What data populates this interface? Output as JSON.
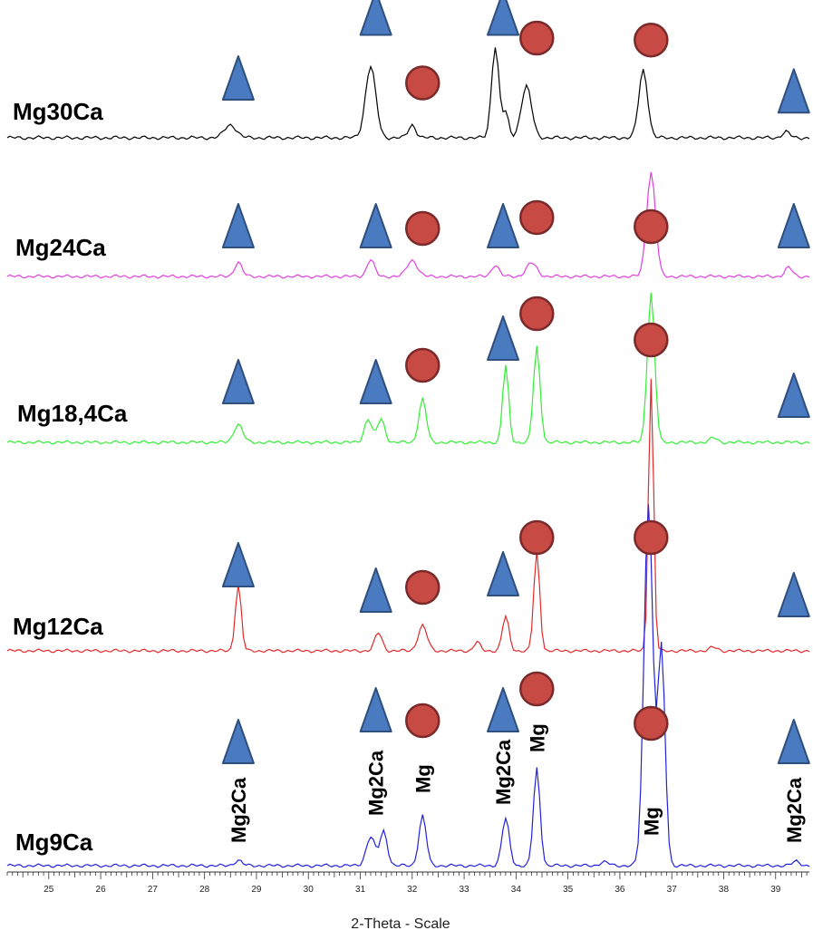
{
  "chart_data": {
    "type": "line",
    "xlabel": "2-Theta - Scale",
    "xlim": [
      24.2,
      39.65
    ],
    "x_ticks": [
      25,
      26,
      27,
      28,
      29,
      30,
      31,
      32,
      33,
      34,
      35,
      36,
      37,
      38,
      39
    ],
    "tick_labels": [
      "25",
      "26",
      "27",
      "28",
      "29",
      "30",
      "31",
      "32",
      "33",
      "34",
      "35",
      "36",
      "37",
      "38",
      "39"
    ],
    "legend": {
      "triangle": "Mg2Ca",
      "circle": "Mg"
    },
    "marker_colors": {
      "triangle": "#4a7abf",
      "circle": "#c84a44"
    },
    "phase_labels": [
      {
        "text": "Mg2Ca",
        "x": 28.65
      },
      {
        "text": "Mg2Ca",
        "x": 31.3
      },
      {
        "text": "Mg",
        "x": 32.2
      },
      {
        "text": "Mg2Ca",
        "x": 33.75
      },
      {
        "text": "Mg",
        "x": 34.4
      },
      {
        "text": "Mg",
        "x": 36.6
      },
      {
        "text": "Mg2Ca",
        "x": 39.35
      }
    ],
    "series": [
      {
        "name": "Mg30Ca",
        "color": "#000000",
        "baseline": 0,
        "peaks": [
          {
            "x": 28.5,
            "h": 0.13,
            "w": 0.16
          },
          {
            "x": 31.2,
            "h": 0.72,
            "w": 0.14
          },
          {
            "x": 32.0,
            "h": 0.13,
            "w": 0.1
          },
          {
            "x": 33.6,
            "h": 0.92,
            "w": 0.1
          },
          {
            "x": 33.8,
            "h": 0.25,
            "w": 0.08
          },
          {
            "x": 34.2,
            "h": 0.52,
            "w": 0.14
          },
          {
            "x": 36.45,
            "h": 0.68,
            "w": 0.12
          },
          {
            "x": 39.2,
            "h": 0.06,
            "w": 0.1
          }
        ],
        "markers": [
          {
            "shape": "triangle",
            "x": 28.65,
            "y": 0.6
          },
          {
            "shape": "triangle",
            "x": 31.3,
            "y": 1.25
          },
          {
            "shape": "circle",
            "x": 32.2,
            "y": 0.55
          },
          {
            "shape": "triangle",
            "x": 33.75,
            "y": 1.25
          },
          {
            "shape": "circle",
            "x": 34.4,
            "y": 1.0
          },
          {
            "shape": "circle",
            "x": 36.6,
            "y": 0.98
          },
          {
            "shape": "triangle",
            "x": 39.35,
            "y": 0.47
          }
        ]
      },
      {
        "name": "Mg24Ca",
        "color": "#e040e0",
        "baseline": 0,
        "peaks": [
          {
            "x": 28.65,
            "h": 0.16,
            "w": 0.1
          },
          {
            "x": 31.2,
            "h": 0.19,
            "w": 0.1
          },
          {
            "x": 32.0,
            "h": 0.18,
            "w": 0.14
          },
          {
            "x": 33.6,
            "h": 0.13,
            "w": 0.1
          },
          {
            "x": 34.3,
            "h": 0.15,
            "w": 0.14
          },
          {
            "x": 36.6,
            "h": 1.15,
            "w": 0.12
          },
          {
            "x": 39.25,
            "h": 0.1,
            "w": 0.1
          }
        ],
        "markers": [
          {
            "shape": "triangle",
            "x": 28.65,
            "y": 0.56
          },
          {
            "shape": "triangle",
            "x": 31.3,
            "y": 0.56
          },
          {
            "shape": "circle",
            "x": 32.2,
            "y": 0.53
          },
          {
            "shape": "triangle",
            "x": 33.75,
            "y": 0.56
          },
          {
            "shape": "circle",
            "x": 34.4,
            "y": 0.65
          },
          {
            "shape": "circle",
            "x": 36.6,
            "y": 0.55
          },
          {
            "shape": "triangle",
            "x": 39.35,
            "y": 0.56
          }
        ]
      },
      {
        "name": "Mg18,4Ca",
        "color": "#33ee33",
        "baseline": 0,
        "peaks": [
          {
            "x": 28.65,
            "h": 0.2,
            "w": 0.12
          },
          {
            "x": 31.15,
            "h": 0.26,
            "w": 0.1
          },
          {
            "x": 31.4,
            "h": 0.26,
            "w": 0.1
          },
          {
            "x": 32.2,
            "h": 0.48,
            "w": 0.1
          },
          {
            "x": 33.8,
            "h": 0.85,
            "w": 0.08
          },
          {
            "x": 34.4,
            "h": 1.05,
            "w": 0.09
          },
          {
            "x": 36.6,
            "h": 1.65,
            "w": 0.1
          },
          {
            "x": 37.8,
            "h": 0.05,
            "w": 0.1
          }
        ],
        "markers": [
          {
            "shape": "triangle",
            "x": 28.65,
            "y": 0.67
          },
          {
            "shape": "triangle",
            "x": 31.3,
            "y": 0.67
          },
          {
            "shape": "circle",
            "x": 32.2,
            "y": 0.85
          },
          {
            "shape": "triangle",
            "x": 33.75,
            "y": 1.15
          },
          {
            "shape": "circle",
            "x": 34.4,
            "y": 1.42
          },
          {
            "shape": "circle",
            "x": 36.6,
            "y": 1.13
          },
          {
            "shape": "triangle",
            "x": 39.35,
            "y": 0.52
          }
        ]
      },
      {
        "name": "Mg12Ca",
        "color": "#e02a2a",
        "baseline": 0,
        "peaks": [
          {
            "x": 28.65,
            "h": 0.73,
            "w": 0.08
          },
          {
            "x": 31.35,
            "h": 0.2,
            "w": 0.1
          },
          {
            "x": 32.2,
            "h": 0.28,
            "w": 0.12
          },
          {
            "x": 33.25,
            "h": 0.1,
            "w": 0.08
          },
          {
            "x": 33.8,
            "h": 0.38,
            "w": 0.09
          },
          {
            "x": 34.4,
            "h": 1.1,
            "w": 0.08
          },
          {
            "x": 36.6,
            "h": 3.0,
            "w": 0.07
          },
          {
            "x": 37.8,
            "h": 0.04,
            "w": 0.1
          }
        ],
        "markers": [
          {
            "shape": "triangle",
            "x": 28.65,
            "y": 0.95
          },
          {
            "shape": "triangle",
            "x": 31.3,
            "y": 0.67
          },
          {
            "shape": "circle",
            "x": 32.2,
            "y": 0.7
          },
          {
            "shape": "triangle",
            "x": 33.75,
            "y": 0.85
          },
          {
            "shape": "circle",
            "x": 34.4,
            "y": 1.25
          },
          {
            "shape": "circle",
            "x": 36.6,
            "y": 1.25
          },
          {
            "shape": "triangle",
            "x": 39.35,
            "y": 0.62
          }
        ]
      },
      {
        "name": "Mg9Ca",
        "color": "#2222dd",
        "baseline": 0,
        "peaks": [
          {
            "x": 28.65,
            "h": 0.06,
            "w": 0.1
          },
          {
            "x": 31.2,
            "h": 0.32,
            "w": 0.12
          },
          {
            "x": 31.45,
            "h": 0.38,
            "w": 0.1
          },
          {
            "x": 32.2,
            "h": 0.55,
            "w": 0.1
          },
          {
            "x": 33.8,
            "h": 0.52,
            "w": 0.1
          },
          {
            "x": 34.4,
            "h": 1.07,
            "w": 0.09
          },
          {
            "x": 35.7,
            "h": 0.04,
            "w": 0.12
          },
          {
            "x": 36.55,
            "h": 4.0,
            "w": 0.12
          },
          {
            "x": 36.8,
            "h": 2.4,
            "w": 0.1
          },
          {
            "x": 39.4,
            "h": 0.05,
            "w": 0.1
          }
        ],
        "markers": [
          {
            "shape": "triangle",
            "x": 28.65,
            "y": 1.37
          },
          {
            "shape": "triangle",
            "x": 31.3,
            "y": 1.72
          },
          {
            "shape": "circle",
            "x": 32.2,
            "y": 1.6
          },
          {
            "shape": "triangle",
            "x": 33.75,
            "y": 1.72
          },
          {
            "shape": "circle",
            "x": 34.4,
            "y": 1.95
          },
          {
            "shape": "circle",
            "x": 36.6,
            "y": 1.57
          },
          {
            "shape": "triangle",
            "x": 39.35,
            "y": 1.37
          }
        ]
      }
    ]
  }
}
